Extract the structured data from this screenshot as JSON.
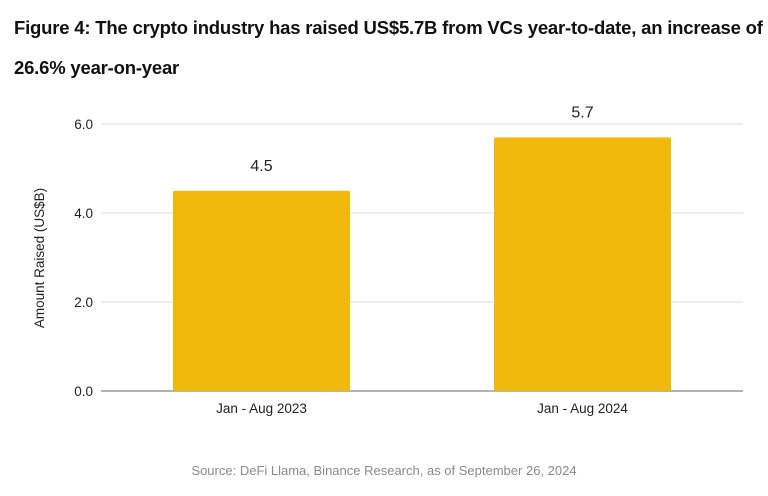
{
  "chart_data": {
    "type": "bar",
    "title": "Figure 4: The crypto industry has raised US$5.7B from VCs year-to-date, an increase of 26.6% year-on-year",
    "categories": [
      "Jan - Aug 2023",
      "Jan - Aug 2024"
    ],
    "values": [
      4.5,
      5.7
    ],
    "data_labels": [
      "4.5",
      "5.7"
    ],
    "xlabel": "",
    "ylabel": "Amount Raised (US$B)",
    "ylim": [
      0,
      6
    ],
    "yticks": [
      0,
      2,
      4,
      6
    ],
    "ytick_labels": [
      "0.0",
      "2.0",
      "4.0",
      "6.0"
    ],
    "grid": true,
    "bar_color": "#F0B90B",
    "source": "Source: DeFi Llama, Binance Research, as of September 26, 2024"
  }
}
